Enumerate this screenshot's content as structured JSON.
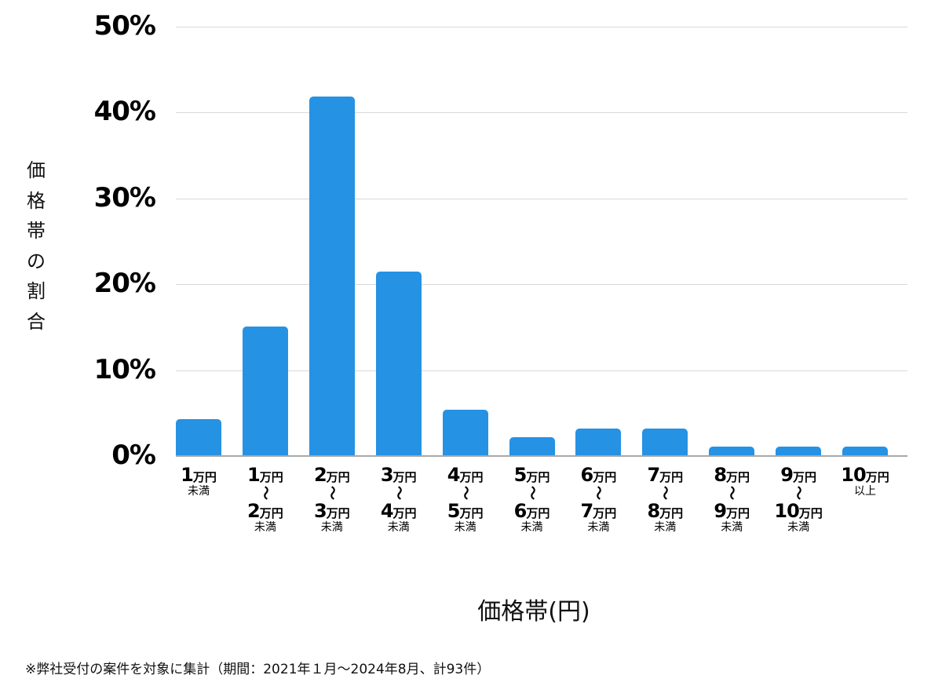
{
  "chart_data": {
    "type": "bar",
    "title": "",
    "xlabel": "価格帯(円)",
    "ylabel": "価格帯の割合",
    "ylim": [
      0,
      50
    ],
    "yticks": [
      "0%",
      "10%",
      "20%",
      "30%",
      "40%",
      "50%"
    ],
    "grid": true,
    "legend": null,
    "categories": [
      "1万円未満",
      "1万円〜2万円未満",
      "2万円〜3万円未満",
      "3万円〜4万円未満",
      "4万円〜5万円未満",
      "5万円〜6万円未満",
      "6万円〜7万円未満",
      "7万円〜8万円未満",
      "8万円〜9万円未満",
      "9万円〜10万円未満",
      "10万円以上"
    ],
    "values": [
      4.3,
      15.1,
      41.9,
      21.5,
      5.4,
      2.2,
      3.2,
      3.2,
      1.1,
      1.1,
      1.1
    ],
    "bar_color": "#2592e4",
    "footnote": "※弊社受付の案件を対象に集計（期間：2021年１月〜2024年8月、計93件）"
  },
  "yaxis": {
    "label_chars": [
      "価",
      "格",
      "帯",
      "の",
      "割",
      "合"
    ],
    "ticks": [
      "50%",
      "40%",
      "30%",
      "20%",
      "10%",
      "0%"
    ]
  },
  "xaxis": {
    "title": "価格帯(円)",
    "unit": "万円",
    "tilde": "〜",
    "categories": [
      {
        "from": "1",
        "to": null,
        "suffix": "未満"
      },
      {
        "from": "1",
        "to": "2",
        "suffix": "未満"
      },
      {
        "from": "2",
        "to": "3",
        "suffix": "未満"
      },
      {
        "from": "3",
        "to": "4",
        "suffix": "未満"
      },
      {
        "from": "4",
        "to": "5",
        "suffix": "未満"
      },
      {
        "from": "5",
        "to": "6",
        "suffix": "未満"
      },
      {
        "from": "6",
        "to": "7",
        "suffix": "未満"
      },
      {
        "from": "7",
        "to": "8",
        "suffix": "未満"
      },
      {
        "from": "8",
        "to": "9",
        "suffix": "未満"
      },
      {
        "from": "9",
        "to": "10",
        "suffix": "未満"
      },
      {
        "from": "10",
        "to": null,
        "suffix": "以上"
      }
    ]
  },
  "footnote": "※弊社受付の案件を対象に集計（期間：2021年１月〜2024年8月、計93件）"
}
